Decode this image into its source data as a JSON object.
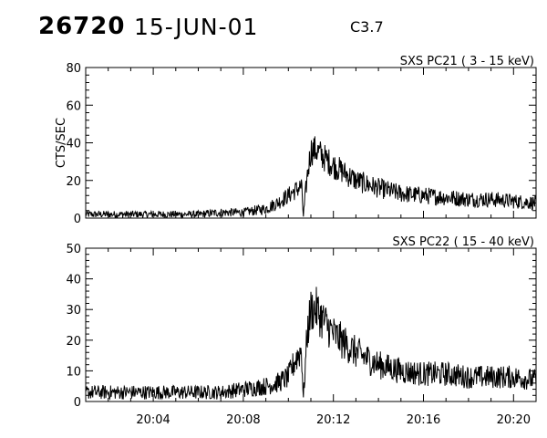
{
  "header": {
    "flare_id": "26720",
    "date": "15-JUN-01",
    "goes_class": "C3.7"
  },
  "chart_data": [
    {
      "type": "line",
      "title": "SXS PC21  (  3 - 15 keV)",
      "ylabel": "CTS/SEC",
      "xlabel": "",
      "xlim": [
        "20:01",
        "20:21"
      ],
      "ylim": [
        0,
        80
      ],
      "yticks": [
        0,
        20,
        40,
        60,
        80
      ],
      "xtick_labels_shown": false,
      "grid": false,
      "series": [
        {
          "x": [
            "20:01:00",
            "20:02:00",
            "20:03:00",
            "20:04:00",
            "20:05:00",
            "20:06:00",
            "20:07:00",
            "20:08:00",
            "20:09:00",
            "20:09:30",
            "20:10:00",
            "20:10:20",
            "20:10:35",
            "20:10:40",
            "20:10:50",
            "20:11:00",
            "20:11:15",
            "20:11:30",
            "20:12:00",
            "20:12:30",
            "20:13:00",
            "20:13:30",
            "20:14:00",
            "20:15:00",
            "20:16:00",
            "20:17:00",
            "20:18:00",
            "20:19:00",
            "20:20:00",
            "20:21:00"
          ],
          "values": [
            2,
            2,
            2,
            2,
            2,
            2,
            3,
            3,
            5,
            8,
            12,
            15,
            17,
            1,
            22,
            36,
            36,
            33,
            28,
            24,
            20,
            18,
            16,
            13,
            12,
            11,
            10,
            10,
            9,
            8
          ]
        }
      ]
    },
    {
      "type": "line",
      "title": "SXS PC22  ( 15 - 40 keV)",
      "ylabel": "",
      "xlabel": "",
      "xlim": [
        "20:01",
        "20:21"
      ],
      "ylim": [
        0,
        50
      ],
      "yticks": [
        0,
        10,
        20,
        30,
        40,
        50
      ],
      "xtick_labels": [
        "20:04",
        "20:08",
        "20:12",
        "20:16",
        "20:20"
      ],
      "grid": false,
      "series": [
        {
          "x": [
            "20:01:00",
            "20:02:00",
            "20:03:00",
            "20:04:00",
            "20:05:00",
            "20:06:00",
            "20:07:00",
            "20:08:00",
            "20:09:00",
            "20:09:30",
            "20:10:00",
            "20:10:20",
            "20:10:35",
            "20:10:40",
            "20:10:50",
            "20:11:00",
            "20:11:15",
            "20:11:30",
            "20:12:00",
            "20:12:30",
            "20:13:00",
            "20:13:30",
            "20:14:00",
            "20:15:00",
            "20:16:00",
            "20:17:00",
            "20:18:00",
            "20:19:00",
            "20:20:00",
            "20:21:00"
          ],
          "values": [
            3,
            3,
            3,
            3,
            3,
            3,
            3,
            4,
            5,
            6,
            8,
            14,
            17,
            1,
            22,
            30,
            30,
            27,
            22,
            19,
            16,
            14,
            12,
            10,
            9,
            9,
            8,
            8,
            8,
            7
          ]
        }
      ]
    }
  ]
}
